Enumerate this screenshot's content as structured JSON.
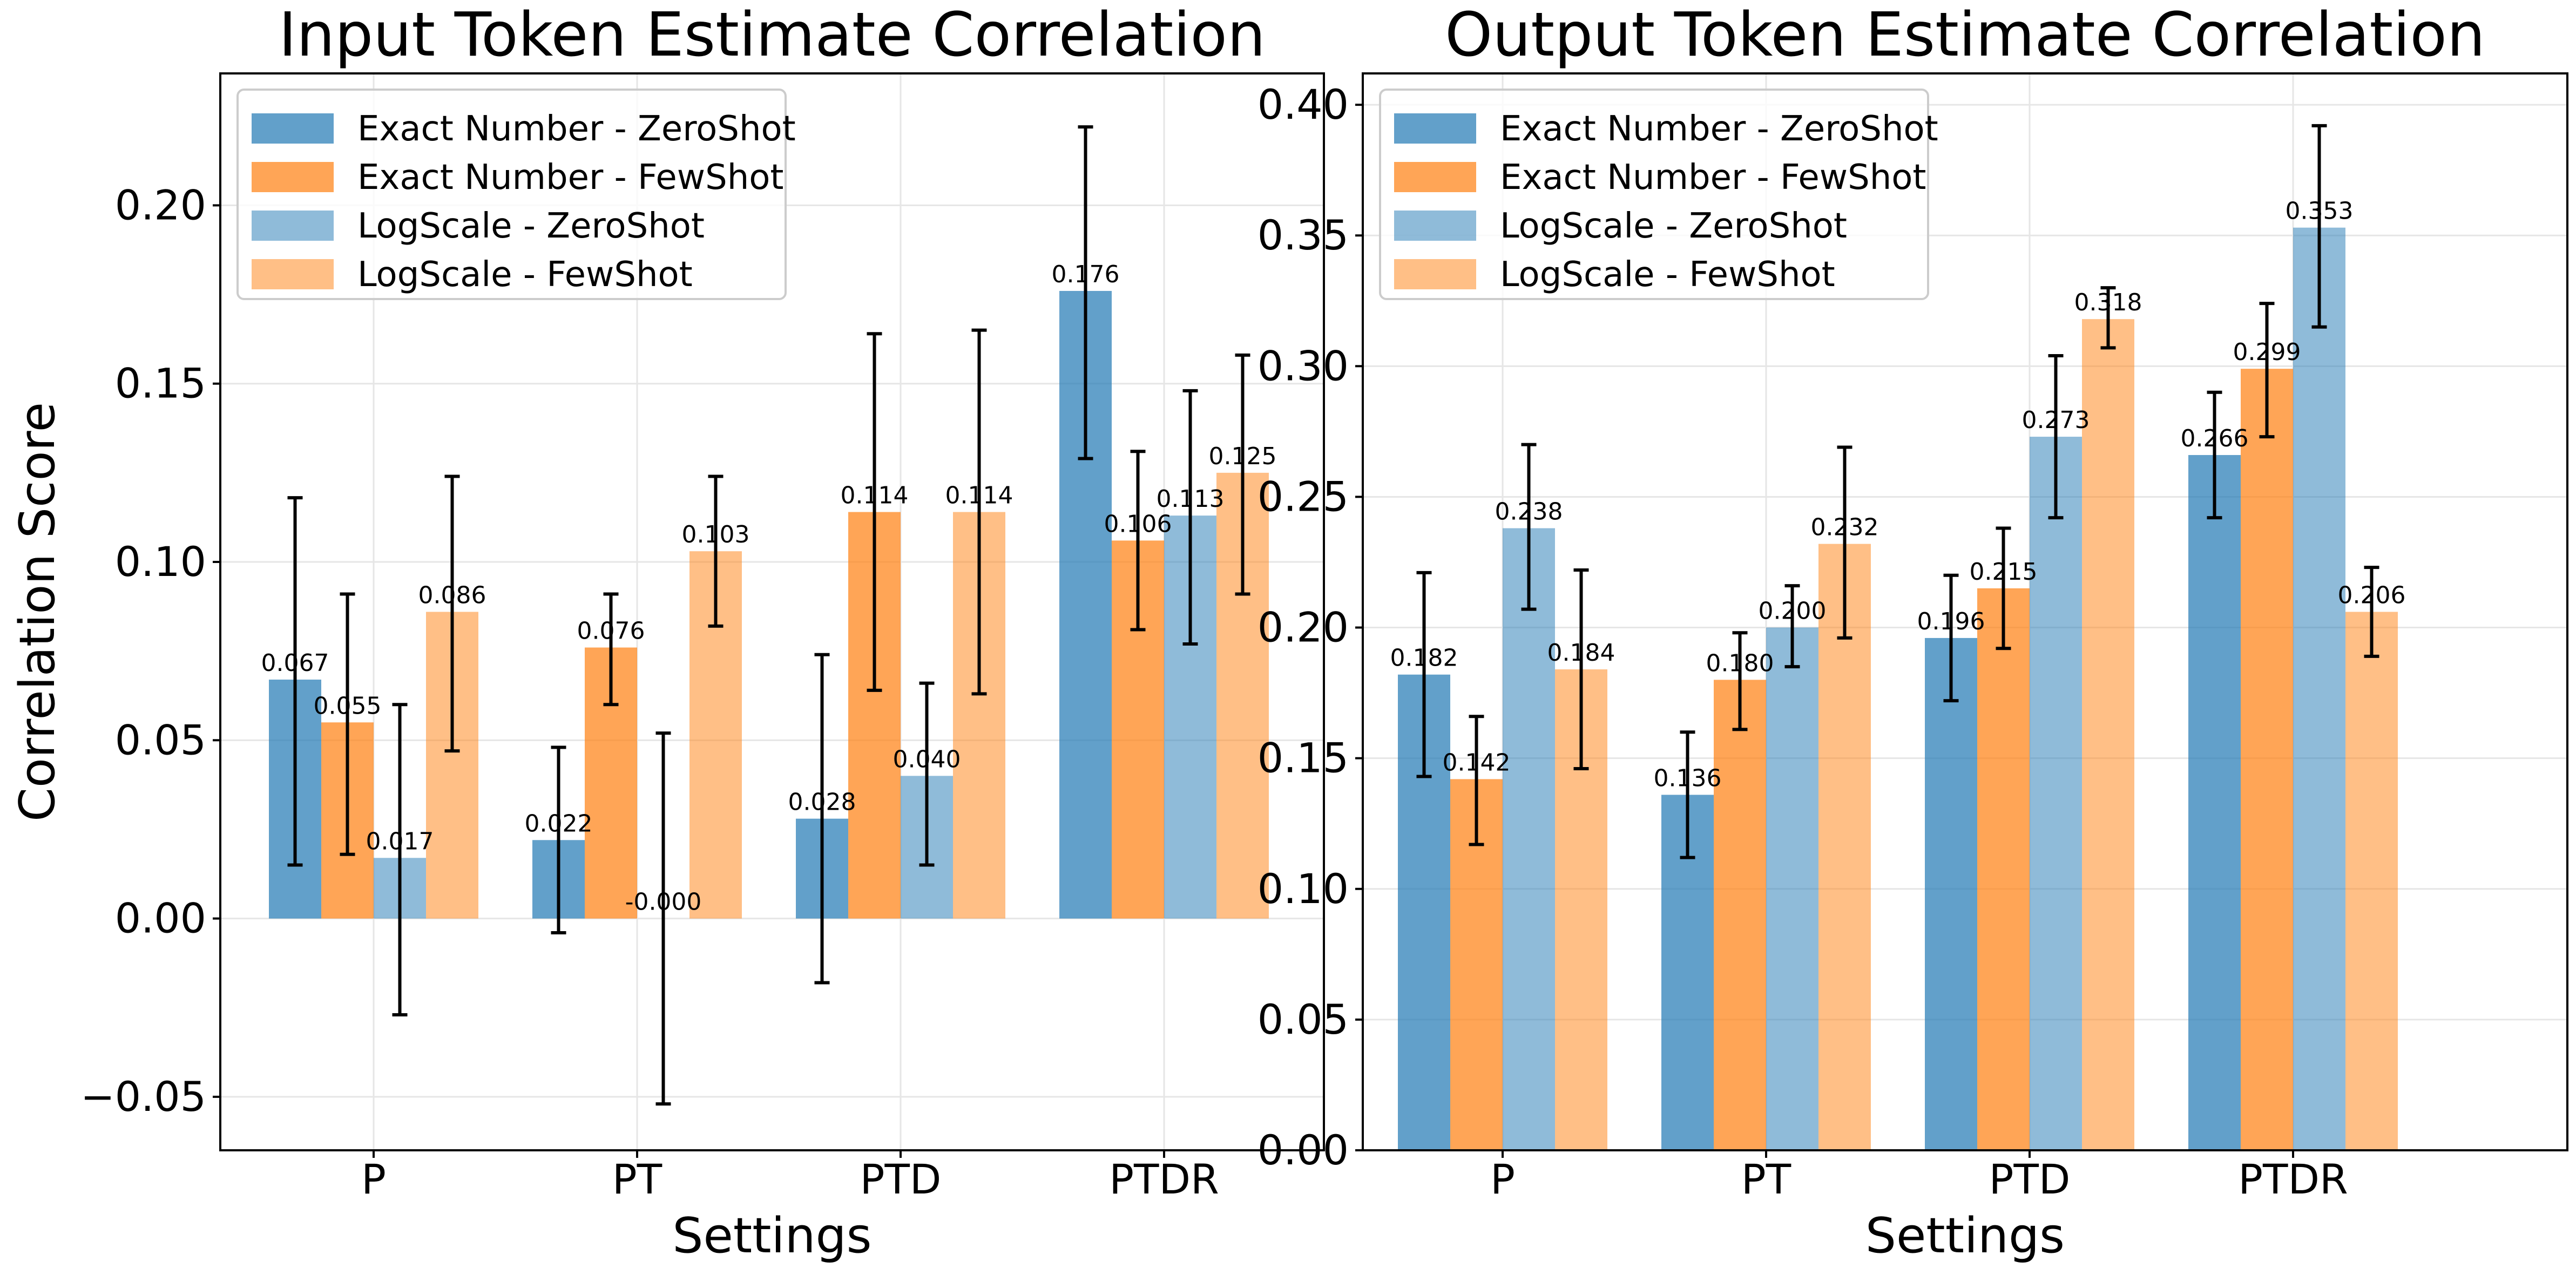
{
  "chart_data": [
    {
      "type": "bar",
      "title": "Input Token Estimate Correlation",
      "xlabel": "Settings",
      "ylabel": "Correlation Score",
      "ylim": [
        -0.065,
        0.237
      ],
      "yticks": [
        -0.05,
        0.0,
        0.05,
        0.1,
        0.15,
        0.2
      ],
      "ytick_labels": [
        "−0.05",
        "0.00",
        "0.05",
        "0.10",
        "0.15",
        "0.20"
      ],
      "categories": [
        "P",
        "PT",
        "PTD",
        "PTDR"
      ],
      "grid": true,
      "legend_position": "top-left",
      "series": [
        {
          "name": "Exact Number - ZeroShot",
          "color": "#1f77b4",
          "alpha": 0.7,
          "values": [
            0.067,
            0.022,
            0.028,
            0.176
          ],
          "labels": [
            "0.067",
            "0.022",
            "0.028",
            "0.176"
          ],
          "err_low": [
            0.015,
            -0.004,
            -0.018,
            0.129
          ],
          "err_high": [
            0.118,
            0.048,
            0.074,
            0.222
          ]
        },
        {
          "name": "Exact Number - FewShot",
          "color": "#ff7f0e",
          "alpha": 0.7,
          "values": [
            0.055,
            0.076,
            0.114,
            0.106
          ],
          "labels": [
            "0.055",
            "0.076",
            "0.114",
            "0.106"
          ],
          "err_low": [
            0.018,
            0.06,
            0.064,
            0.081
          ],
          "err_high": [
            0.091,
            0.091,
            0.164,
            0.131
          ]
        },
        {
          "name": "LogScale - ZeroShot",
          "color": "#1f77b4",
          "alpha": 0.5,
          "values": [
            0.017,
            -0.0,
            0.04,
            0.113
          ],
          "labels": [
            "0.017",
            "-0.000",
            "0.040",
            "0.113"
          ],
          "err_low": [
            -0.027,
            -0.052,
            0.015,
            0.077
          ],
          "err_high": [
            0.06,
            0.052,
            0.066,
            0.148
          ]
        },
        {
          "name": "LogScale - FewShot",
          "color": "#ff7f0e",
          "alpha": 0.5,
          "values": [
            0.086,
            0.103,
            0.114,
            0.125
          ],
          "labels": [
            "0.086",
            "0.103",
            "0.114",
            "0.125"
          ],
          "err_low": [
            0.047,
            0.082,
            0.063,
            0.091
          ],
          "err_high": [
            0.124,
            0.124,
            0.165,
            0.158
          ]
        }
      ]
    },
    {
      "type": "bar",
      "title": "Output Token Estimate Correlation",
      "xlabel": "Settings",
      "ylabel": "",
      "ylim": [
        0.0,
        0.412
      ],
      "yticks": [
        0.0,
        0.05,
        0.1,
        0.15,
        0.2,
        0.25,
        0.3,
        0.35,
        0.4
      ],
      "ytick_labels": [
        "0.00",
        "0.05",
        "0.10",
        "0.15",
        "0.20",
        "0.25",
        "0.30",
        "0.35",
        "0.40"
      ],
      "categories": [
        "P",
        "PT",
        "PTD",
        "PTDR"
      ],
      "grid": true,
      "legend_position": "top-left",
      "series": [
        {
          "name": "Exact Number - ZeroShot",
          "color": "#1f77b4",
          "alpha": 0.7,
          "values": [
            0.182,
            0.136,
            0.196,
            0.266
          ],
          "labels": [
            "0.182",
            "0.136",
            "0.196",
            "0.266"
          ],
          "err_low": [
            0.143,
            0.112,
            0.172,
            0.242
          ],
          "err_high": [
            0.221,
            0.16,
            0.22,
            0.29
          ]
        },
        {
          "name": "Exact Number - FewShot",
          "color": "#ff7f0e",
          "alpha": 0.7,
          "values": [
            0.142,
            0.18,
            0.215,
            0.299
          ],
          "labels": [
            "0.142",
            "0.180",
            "0.215",
            "0.299"
          ],
          "err_low": [
            0.117,
            0.161,
            0.192,
            0.273
          ],
          "err_high": [
            0.166,
            0.198,
            0.238,
            0.324
          ]
        },
        {
          "name": "LogScale - ZeroShot",
          "color": "#1f77b4",
          "alpha": 0.5,
          "values": [
            0.238,
            0.2,
            0.273,
            0.353
          ],
          "labels": [
            "0.238",
            "0.200",
            "0.273",
            "0.353"
          ],
          "err_low": [
            0.207,
            0.185,
            0.242,
            0.315
          ],
          "err_high": [
            0.27,
            0.216,
            0.304,
            0.392
          ]
        },
        {
          "name": "LogScale - FewShot",
          "color": "#ff7f0e",
          "alpha": 0.5,
          "values": [
            0.184,
            0.232,
            0.318,
            0.206
          ],
          "labels": [
            "0.184",
            "0.232",
            "0.318",
            "0.206"
          ],
          "err_low": [
            0.146,
            0.196,
            0.307,
            0.189
          ],
          "err_high": [
            0.222,
            0.269,
            0.33,
            0.223
          ]
        }
      ]
    }
  ]
}
